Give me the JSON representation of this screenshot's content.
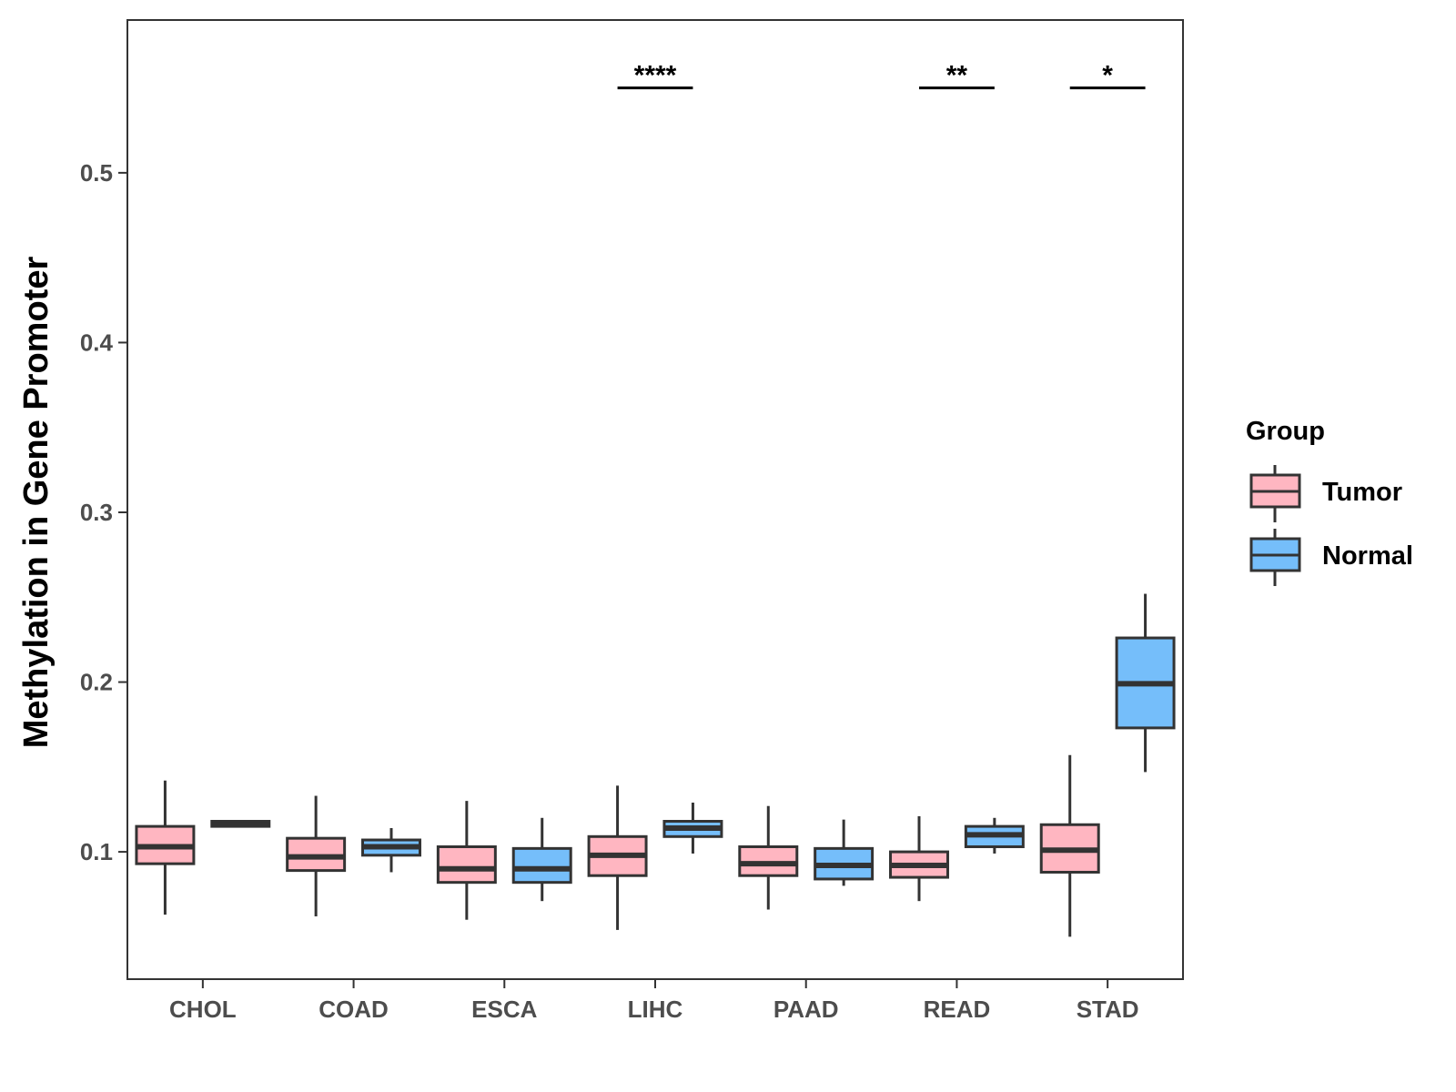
{
  "chart_data": {
    "type": "boxplot",
    "title": "",
    "xlabel": "",
    "ylabel": "Methylation in Gene Promoter",
    "ylim": [
      0.025,
      0.59
    ],
    "yticks": [
      0.1,
      0.2,
      0.3,
      0.4,
      0.5
    ],
    "ytick_labels": [
      "0.1",
      "0.2",
      "0.3",
      "0.4",
      "0.5"
    ],
    "grid": false,
    "categories": [
      "CHOL",
      "COAD",
      "ESCA",
      "LIHC",
      "PAAD",
      "READ",
      "STAD"
    ],
    "legend": {
      "title": "Group",
      "position": "right",
      "entries": [
        {
          "name": "Tumor",
          "color": "#FFB6C1"
        },
        {
          "name": "Normal",
          "color": "#75BEFA"
        }
      ]
    },
    "series": [
      {
        "name": "Tumor",
        "color": "#FFB6C1",
        "boxes": [
          {
            "category": "CHOL",
            "min": 0.063,
            "q1": 0.093,
            "median": 0.103,
            "q3": 0.115,
            "max": 0.142
          },
          {
            "category": "COAD",
            "min": 0.062,
            "q1": 0.089,
            "median": 0.097,
            "q3": 0.108,
            "max": 0.133
          },
          {
            "category": "ESCA",
            "min": 0.06,
            "q1": 0.082,
            "median": 0.09,
            "q3": 0.103,
            "max": 0.13
          },
          {
            "category": "LIHC",
            "min": 0.054,
            "q1": 0.086,
            "median": 0.098,
            "q3": 0.109,
            "max": 0.139
          },
          {
            "category": "PAAD",
            "min": 0.066,
            "q1": 0.086,
            "median": 0.093,
            "q3": 0.103,
            "max": 0.127
          },
          {
            "category": "READ",
            "min": 0.071,
            "q1": 0.085,
            "median": 0.092,
            "q3": 0.1,
            "max": 0.121
          },
          {
            "category": "STAD",
            "min": 0.05,
            "q1": 0.088,
            "median": 0.101,
            "q3": 0.116,
            "max": 0.157
          }
        ]
      },
      {
        "name": "Normal",
        "color": "#75BEFA",
        "boxes": [
          {
            "category": "CHOL",
            "min": 0.115,
            "q1": 0.115,
            "median": 0.116,
            "q3": 0.118,
            "max": 0.118
          },
          {
            "category": "COAD",
            "min": 0.088,
            "q1": 0.098,
            "median": 0.103,
            "q3": 0.107,
            "max": 0.114
          },
          {
            "category": "ESCA",
            "min": 0.071,
            "q1": 0.082,
            "median": 0.09,
            "q3": 0.102,
            "max": 0.12
          },
          {
            "category": "LIHC",
            "min": 0.099,
            "q1": 0.109,
            "median": 0.114,
            "q3": 0.118,
            "max": 0.129
          },
          {
            "category": "PAAD",
            "min": 0.08,
            "q1": 0.084,
            "median": 0.092,
            "q3": 0.102,
            "max": 0.119
          },
          {
            "category": "READ",
            "min": 0.099,
            "q1": 0.103,
            "median": 0.11,
            "q3": 0.115,
            "max": 0.12
          },
          {
            "category": "STAD",
            "min": 0.147,
            "q1": 0.173,
            "median": 0.199,
            "q3": 0.226,
            "max": 0.252
          }
        ]
      }
    ],
    "annotations": [
      {
        "category": "LIHC",
        "label": "****",
        "y": 0.55
      },
      {
        "category": "READ",
        "label": "**",
        "y": 0.55
      },
      {
        "category": "STAD",
        "label": "*",
        "y": 0.55
      }
    ]
  }
}
